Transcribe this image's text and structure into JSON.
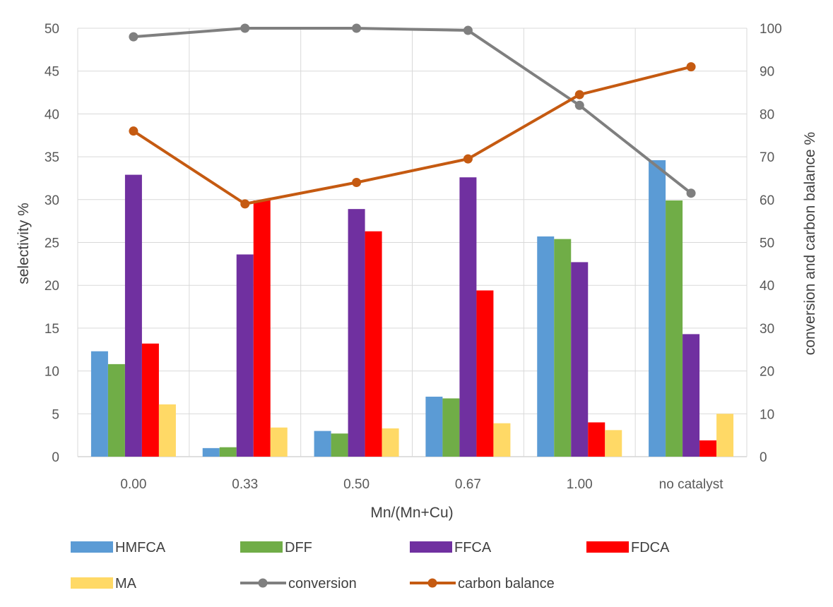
{
  "chart_data": {
    "type": "bar",
    "xlabel": "Mn/(Mn+Cu)",
    "ylabel": "selectivity %",
    "y2label": "conversion and carbon balance %",
    "ylim": [
      0,
      50
    ],
    "y2lim": [
      0,
      100
    ],
    "yticks": [
      "0",
      "5",
      "10",
      "15",
      "20",
      "25",
      "30",
      "35",
      "40",
      "45",
      "50"
    ],
    "y2ticks": [
      "0",
      "10",
      "20",
      "30",
      "40",
      "50",
      "60",
      "70",
      "80",
      "90",
      "100"
    ],
    "grid": true,
    "legend_position": "bottom",
    "categories": [
      "0.00",
      "0.33",
      "0.50",
      "0.67",
      "1.00",
      "no catalyst"
    ],
    "series": [
      {
        "name": "HMFCA",
        "kind": "bar",
        "axis": "left",
        "color": "#5B9BD5",
        "values": [
          12.3,
          1.0,
          3.0,
          7.0,
          25.7,
          34.6
        ]
      },
      {
        "name": "DFF",
        "kind": "bar",
        "axis": "left",
        "color": "#70AD47",
        "values": [
          10.8,
          1.1,
          2.7,
          6.8,
          25.4,
          29.9
        ]
      },
      {
        "name": "FFCA",
        "kind": "bar",
        "axis": "left",
        "color": "#7030A0",
        "values": [
          32.9,
          23.6,
          28.9,
          32.6,
          22.7,
          14.3
        ]
      },
      {
        "name": "FDCA",
        "kind": "bar",
        "axis": "left",
        "color": "#FF0000",
        "values": [
          13.2,
          29.9,
          26.3,
          19.4,
          4.0,
          1.9
        ]
      },
      {
        "name": "MA",
        "kind": "bar",
        "axis": "left",
        "color": "#FFD966",
        "values": [
          6.1,
          3.4,
          3.3,
          3.9,
          3.1,
          5.0
        ]
      },
      {
        "name": "conversion",
        "kind": "line",
        "axis": "right",
        "color": "#7F7F7F",
        "values": [
          98,
          100,
          100,
          99.5,
          82,
          61.5
        ]
      },
      {
        "name": "carbon balance",
        "kind": "line",
        "axis": "right",
        "color": "#C55A11",
        "values": [
          76,
          59,
          64,
          69.5,
          84.5,
          91
        ]
      }
    ]
  }
}
